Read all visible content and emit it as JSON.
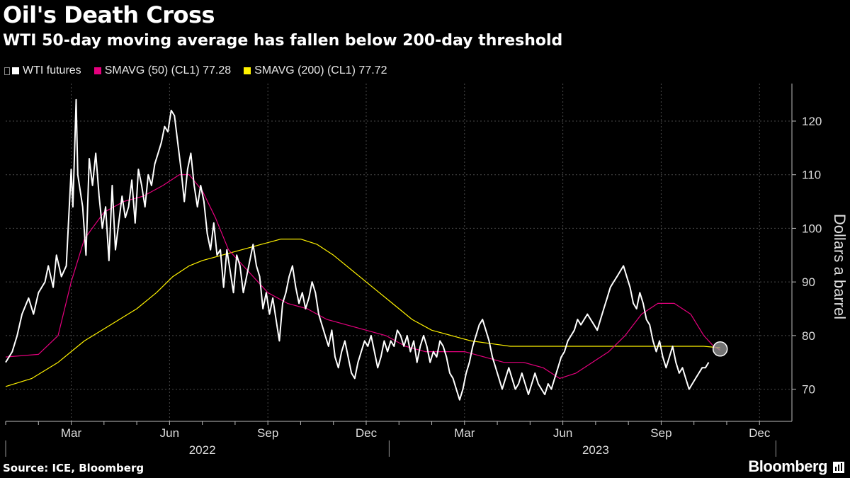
{
  "header": {
    "title": "Oil's Death Cross",
    "subtitle": "WTI 50-day moving average has fallen below 200-day threshold"
  },
  "legend": {
    "items": [
      {
        "label": "WTI futures",
        "color": "#ffffff"
      },
      {
        "label": "SMAVG (50) (CL1) 77.28",
        "color": "#e6007e"
      },
      {
        "label": "SMAVG (200) (CL1) 77.72",
        "color": "#fff200"
      }
    ]
  },
  "footer": {
    "source": "Source: ICE, Bloomberg",
    "brand": "Bloomberg"
  },
  "chart_data": {
    "type": "line",
    "title": "Oil's Death Cross",
    "ylabel": "Dollars a barrel",
    "xlabel": "",
    "ylim": [
      64,
      127
    ],
    "xlim": [
      0,
      23.6
    ],
    "yticks": [
      70,
      80,
      90,
      100,
      110,
      120
    ],
    "month_ticks": [
      {
        "label": "Mar",
        "x": 2
      },
      {
        "label": "Jun",
        "x": 5
      },
      {
        "label": "Sep",
        "x": 8
      },
      {
        "label": "Dec",
        "x": 11
      },
      {
        "label": "Mar",
        "x": 14
      },
      {
        "label": "Jun",
        "x": 17
      },
      {
        "label": "Sep",
        "x": 20
      },
      {
        "label": "Dec",
        "x": 23
      }
    ],
    "year_labels": [
      {
        "label": "2022",
        "x": 6
      },
      {
        "label": "2023",
        "x": 18
      }
    ],
    "year_boundaries": [
      0,
      11.7,
      23.5
    ],
    "series": [
      {
        "name": "WTI futures",
        "color": "#ffffff",
        "width": 2,
        "points": [
          [
            0,
            75
          ],
          [
            0.2,
            77
          ],
          [
            0.35,
            80
          ],
          [
            0.5,
            84
          ],
          [
            0.7,
            87
          ],
          [
            0.85,
            84
          ],
          [
            1.0,
            88
          ],
          [
            1.2,
            90
          ],
          [
            1.3,
            93
          ],
          [
            1.45,
            89
          ],
          [
            1.55,
            95
          ],
          [
            1.7,
            91
          ],
          [
            1.85,
            93
          ],
          [
            2.0,
            111
          ],
          [
            2.05,
            104
          ],
          [
            2.15,
            124
          ],
          [
            2.2,
            110
          ],
          [
            2.35,
            104
          ],
          [
            2.45,
            95
          ],
          [
            2.55,
            113
          ],
          [
            2.65,
            108
          ],
          [
            2.75,
            114
          ],
          [
            2.85,
            106
          ],
          [
            2.95,
            100
          ],
          [
            3.05,
            104
          ],
          [
            3.15,
            94
          ],
          [
            3.25,
            108
          ],
          [
            3.35,
            96
          ],
          [
            3.45,
            101
          ],
          [
            3.55,
            106
          ],
          [
            3.65,
            102
          ],
          [
            3.75,
            104
          ],
          [
            3.85,
            109
          ],
          [
            3.95,
            101
          ],
          [
            4.05,
            111
          ],
          [
            4.15,
            108
          ],
          [
            4.25,
            104
          ],
          [
            4.35,
            110
          ],
          [
            4.45,
            108
          ],
          [
            4.55,
            112
          ],
          [
            4.65,
            114
          ],
          [
            4.75,
            116
          ],
          [
            4.85,
            119
          ],
          [
            4.95,
            118
          ],
          [
            5.05,
            122
          ],
          [
            5.15,
            121
          ],
          [
            5.25,
            116
          ],
          [
            5.35,
            111
          ],
          [
            5.45,
            105
          ],
          [
            5.55,
            111
          ],
          [
            5.65,
            114
          ],
          [
            5.75,
            108
          ],
          [
            5.85,
            104
          ],
          [
            5.95,
            108
          ],
          [
            6.05,
            105
          ],
          [
            6.15,
            99
          ],
          [
            6.25,
            96
          ],
          [
            6.35,
            101
          ],
          [
            6.45,
            95
          ],
          [
            6.55,
            96
          ],
          [
            6.65,
            89
          ],
          [
            6.75,
            96
          ],
          [
            6.85,
            92
          ],
          [
            6.95,
            88
          ],
          [
            7.05,
            95
          ],
          [
            7.15,
            93
          ],
          [
            7.25,
            88
          ],
          [
            7.35,
            91
          ],
          [
            7.45,
            94
          ],
          [
            7.55,
            97
          ],
          [
            7.65,
            93
          ],
          [
            7.75,
            91
          ],
          [
            7.85,
            85
          ],
          [
            7.95,
            88
          ],
          [
            8.05,
            84
          ],
          [
            8.15,
            87
          ],
          [
            8.25,
            83
          ],
          [
            8.35,
            79
          ],
          [
            8.45,
            86
          ],
          [
            8.55,
            88
          ],
          [
            8.65,
            91
          ],
          [
            8.75,
            93
          ],
          [
            8.85,
            89
          ],
          [
            8.95,
            86
          ],
          [
            9.05,
            88
          ],
          [
            9.15,
            85
          ],
          [
            9.25,
            87
          ],
          [
            9.35,
            90
          ],
          [
            9.45,
            88
          ],
          [
            9.55,
            84
          ],
          [
            9.65,
            82
          ],
          [
            9.75,
            80
          ],
          [
            9.85,
            78
          ],
          [
            9.95,
            81
          ],
          [
            10.05,
            76
          ],
          [
            10.15,
            74
          ],
          [
            10.25,
            77
          ],
          [
            10.35,
            79
          ],
          [
            10.45,
            76
          ],
          [
            10.55,
            73
          ],
          [
            10.65,
            72
          ],
          [
            10.75,
            75
          ],
          [
            10.85,
            77
          ],
          [
            10.95,
            79
          ],
          [
            11.05,
            78
          ],
          [
            11.15,
            80
          ],
          [
            11.25,
            77
          ],
          [
            11.35,
            74
          ],
          [
            11.45,
            76
          ],
          [
            11.55,
            79
          ],
          [
            11.65,
            77
          ],
          [
            11.75,
            79
          ],
          [
            11.85,
            78
          ],
          [
            11.95,
            81
          ],
          [
            12.05,
            80
          ],
          [
            12.15,
            78
          ],
          [
            12.25,
            80
          ],
          [
            12.35,
            77
          ],
          [
            12.45,
            79
          ],
          [
            12.55,
            75
          ],
          [
            12.65,
            78
          ],
          [
            12.75,
            80
          ],
          [
            12.85,
            78
          ],
          [
            12.95,
            75
          ],
          [
            13.05,
            77
          ],
          [
            13.15,
            76
          ],
          [
            13.25,
            79
          ],
          [
            13.35,
            78
          ],
          [
            13.45,
            76
          ],
          [
            13.55,
            73
          ],
          [
            13.65,
            72
          ],
          [
            13.75,
            70
          ],
          [
            13.85,
            68
          ],
          [
            13.95,
            70
          ],
          [
            14.05,
            73
          ],
          [
            14.15,
            75
          ],
          [
            14.25,
            78
          ],
          [
            14.35,
            80
          ],
          [
            14.45,
            82
          ],
          [
            14.55,
            83
          ],
          [
            14.65,
            81
          ],
          [
            14.75,
            79
          ],
          [
            14.85,
            76
          ],
          [
            14.95,
            74
          ],
          [
            15.05,
            72
          ],
          [
            15.15,
            70
          ],
          [
            15.25,
            72
          ],
          [
            15.35,
            74
          ],
          [
            15.45,
            72
          ],
          [
            15.55,
            70
          ],
          [
            15.65,
            71
          ],
          [
            15.75,
            73
          ],
          [
            15.85,
            71
          ],
          [
            15.95,
            69
          ],
          [
            16.05,
            71
          ],
          [
            16.15,
            73
          ],
          [
            16.25,
            71
          ],
          [
            16.35,
            70
          ],
          [
            16.45,
            69
          ],
          [
            16.55,
            71
          ],
          [
            16.65,
            70
          ],
          [
            16.75,
            72
          ],
          [
            16.85,
            74
          ],
          [
            16.95,
            76
          ],
          [
            17.05,
            77
          ],
          [
            17.15,
            79
          ],
          [
            17.25,
            80
          ],
          [
            17.35,
            81
          ],
          [
            17.45,
            83
          ],
          [
            17.55,
            82
          ],
          [
            17.65,
            83
          ],
          [
            17.75,
            84
          ],
          [
            17.85,
            83
          ],
          [
            17.95,
            82
          ],
          [
            18.05,
            81
          ],
          [
            18.15,
            83
          ],
          [
            18.25,
            85
          ],
          [
            18.35,
            87
          ],
          [
            18.45,
            89
          ],
          [
            18.55,
            90
          ],
          [
            18.65,
            91
          ],
          [
            18.75,
            92
          ],
          [
            18.85,
            93
          ],
          [
            18.95,
            91
          ],
          [
            19.05,
            89
          ],
          [
            19.15,
            86
          ],
          [
            19.25,
            85
          ],
          [
            19.35,
            88
          ],
          [
            19.45,
            86
          ],
          [
            19.55,
            83
          ],
          [
            19.65,
            82
          ],
          [
            19.75,
            79
          ],
          [
            19.85,
            77
          ],
          [
            19.95,
            79
          ],
          [
            20.05,
            76
          ],
          [
            20.15,
            74
          ],
          [
            20.25,
            76
          ],
          [
            20.35,
            78
          ],
          [
            20.45,
            75
          ],
          [
            20.55,
            73
          ],
          [
            20.65,
            74
          ],
          [
            20.75,
            72
          ],
          [
            20.85,
            70
          ],
          [
            20.95,
            71
          ],
          [
            21.05,
            72
          ],
          [
            21.15,
            73
          ],
          [
            21.25,
            74
          ],
          [
            21.35,
            74
          ],
          [
            21.45,
            75
          ]
        ]
      },
      {
        "name": "SMAVG (50) (CL1)",
        "color": "#e6007e",
        "width": 1.2,
        "points": [
          [
            0,
            76
          ],
          [
            1,
            76.5
          ],
          [
            1.6,
            80
          ],
          [
            2.0,
            90
          ],
          [
            2.4,
            98
          ],
          [
            3.0,
            103
          ],
          [
            3.6,
            105
          ],
          [
            4.2,
            106
          ],
          [
            4.8,
            108
          ],
          [
            5.3,
            110
          ],
          [
            5.6,
            110
          ],
          [
            6.0,
            107
          ],
          [
            6.4,
            102
          ],
          [
            6.8,
            96
          ],
          [
            7.4,
            92
          ],
          [
            8.0,
            88
          ],
          [
            8.6,
            86
          ],
          [
            9.2,
            85
          ],
          [
            9.8,
            83
          ],
          [
            10.4,
            82
          ],
          [
            11.0,
            81
          ],
          [
            11.6,
            80
          ],
          [
            12.2,
            78
          ],
          [
            12.8,
            77
          ],
          [
            13.4,
            77
          ],
          [
            14.0,
            77
          ],
          [
            14.6,
            76
          ],
          [
            15.2,
            75
          ],
          [
            15.8,
            75
          ],
          [
            16.4,
            74
          ],
          [
            16.9,
            72
          ],
          [
            17.4,
            73
          ],
          [
            17.9,
            75
          ],
          [
            18.4,
            77
          ],
          [
            18.9,
            80
          ],
          [
            19.4,
            84
          ],
          [
            19.9,
            86
          ],
          [
            20.4,
            86
          ],
          [
            20.9,
            84
          ],
          [
            21.3,
            80
          ],
          [
            21.6,
            78
          ],
          [
            21.8,
            77.28
          ]
        ]
      },
      {
        "name": "SMAVG (200) (CL1)",
        "color": "#fff200",
        "width": 1.2,
        "points": [
          [
            0,
            70.5
          ],
          [
            0.8,
            72
          ],
          [
            1.6,
            75
          ],
          [
            2.4,
            79
          ],
          [
            3.2,
            82
          ],
          [
            4.0,
            85
          ],
          [
            4.6,
            88
          ],
          [
            5.1,
            91
          ],
          [
            5.6,
            93
          ],
          [
            6.0,
            94
          ],
          [
            6.6,
            95
          ],
          [
            7.2,
            96
          ],
          [
            7.8,
            97
          ],
          [
            8.4,
            98
          ],
          [
            9.0,
            98
          ],
          [
            9.5,
            97
          ],
          [
            10.0,
            95
          ],
          [
            10.6,
            92
          ],
          [
            11.2,
            89
          ],
          [
            11.8,
            86
          ],
          [
            12.4,
            83
          ],
          [
            13.0,
            81
          ],
          [
            13.6,
            80
          ],
          [
            14.2,
            79
          ],
          [
            14.8,
            78.5
          ],
          [
            15.4,
            78
          ],
          [
            16.0,
            78
          ],
          [
            16.6,
            78
          ],
          [
            17.2,
            78
          ],
          [
            17.8,
            78
          ],
          [
            18.4,
            78
          ],
          [
            19.0,
            78
          ],
          [
            19.6,
            78
          ],
          [
            20.2,
            78
          ],
          [
            20.8,
            78
          ],
          [
            21.3,
            78
          ],
          [
            21.8,
            77.72
          ]
        ]
      }
    ],
    "highlight_point": {
      "x": 21.8,
      "y": 77.5
    }
  }
}
